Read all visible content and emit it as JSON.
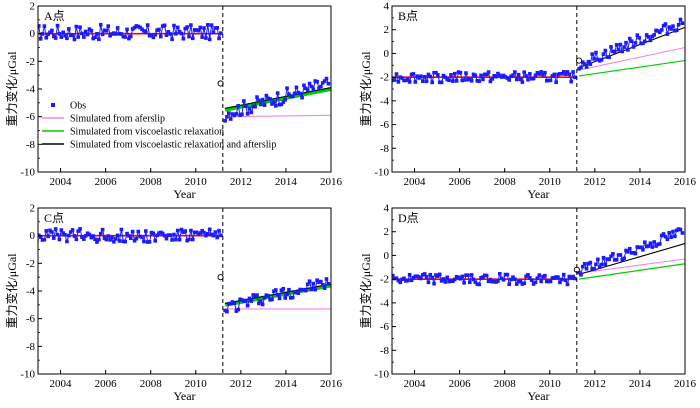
{
  "chart_data": [
    {
      "type": "line",
      "panel": "A",
      "title": "A点",
      "xlabel": "Year",
      "ylabel": "重力变化/μGal",
      "xlim": [
        2003,
        2016
      ],
      "ylim": [
        -10,
        2
      ],
      "xticks": [
        2004,
        2006,
        2008,
        2010,
        2012,
        2014,
        2016
      ],
      "yticks": [
        -10,
        -8,
        -6,
        -4,
        -2,
        0,
        2
      ],
      "event_x": 2011.2,
      "obs_pre_mean": 0.1,
      "obs_pre_amp": 0.55,
      "obs_post_start": -5.8,
      "obs_post_end": -3.6,
      "obs_post_amp": 0.55,
      "obs_x_end": 2015.9,
      "gap_point": [
        2011.1,
        -3.6
      ],
      "pre_fit": [
        [
          2003,
          0
        ],
        [
          2011.1,
          0
        ]
      ],
      "series": [
        {
          "name": "Obs",
          "color": "#1a1aff"
        },
        {
          "name": "Simulated from aferslip",
          "color": "#ee88ee",
          "values": [
            [
              2011.3,
              -6.0
            ],
            [
              2016,
              -5.9
            ]
          ]
        },
        {
          "name": "Simulated from viscoelastic relaxation",
          "color": "#00cc00",
          "values": [
            [
              2011.3,
              -5.5
            ],
            [
              2016,
              -4.0
            ]
          ]
        },
        {
          "name": "Simulated from viscoelastic relaxation and afterslip",
          "color": "#000000",
          "values": [
            [
              2011.3,
              -5.4
            ],
            [
              2016,
              -3.9
            ]
          ]
        }
      ],
      "legend": true
    },
    {
      "type": "line",
      "panel": "B",
      "title": "B点",
      "xlabel": "Year",
      "ylabel": "重力变化/μGal",
      "xlim": [
        2003,
        2016
      ],
      "ylim": [
        -10,
        4
      ],
      "xticks": [
        2004,
        2006,
        2008,
        2010,
        2012,
        2014,
        2016
      ],
      "yticks": [
        -10,
        -8,
        -6,
        -4,
        -2,
        0,
        2,
        4
      ],
      "event_x": 2011.2,
      "obs_pre_mean": -2.0,
      "obs_pre_amp": 0.45,
      "obs_post_start": -1.0,
      "obs_post_end": 2.6,
      "obs_post_amp": 0.5,
      "obs_x_end": 2015.9,
      "gap_point": [
        2011.3,
        -0.6
      ],
      "pre_fit": [
        [
          2003,
          -2.0
        ],
        [
          2011.1,
          -2.0
        ]
      ],
      "series": [
        {
          "name": "Obs",
          "color": "#1a1aff"
        },
        {
          "name": "Simulated from aferslip",
          "color": "#ee88ee",
          "values": [
            [
              2011.3,
              -1.4
            ],
            [
              2016,
              0.5
            ]
          ]
        },
        {
          "name": "Simulated from viscoelastic relaxation",
          "color": "#00cc00",
          "values": [
            [
              2011.3,
              -1.9
            ],
            [
              2016,
              -0.6
            ]
          ]
        },
        {
          "name": "Simulated from viscoelastic relaxation and afterslip",
          "color": "#000000",
          "values": [
            [
              2011.3,
              -1.2
            ],
            [
              2016,
              2.2
            ]
          ]
        }
      ],
      "legend": false
    },
    {
      "type": "line",
      "panel": "C",
      "title": "C点",
      "xlabel": "Year",
      "ylabel": "重力变化/μGal",
      "xlim": [
        2003,
        2016
      ],
      "ylim": [
        -10,
        2
      ],
      "xticks": [
        2004,
        2006,
        2008,
        2010,
        2012,
        2014,
        2016
      ],
      "yticks": [
        -10,
        -8,
        -6,
        -4,
        -2,
        0,
        2
      ],
      "event_x": 2011.2,
      "obs_pre_mean": 0.0,
      "obs_pre_amp": 0.5,
      "obs_post_start": -5.2,
      "obs_post_end": -3.4,
      "obs_post_amp": 0.5,
      "obs_x_end": 2015.9,
      "gap_point": [
        2011.1,
        -3.0
      ],
      "pre_fit": [
        [
          2003,
          0
        ],
        [
          2011.1,
          0
        ]
      ],
      "series": [
        {
          "name": "Obs",
          "color": "#1a1aff"
        },
        {
          "name": "Simulated from aferslip",
          "color": "#ee88ee",
          "values": [
            [
              2011.3,
              -5.3
            ],
            [
              2016,
              -5.3
            ]
          ]
        },
        {
          "name": "Simulated from viscoelastic relaxation",
          "color": "#00cc00",
          "values": [
            [
              2011.3,
              -5.0
            ],
            [
              2016,
              -3.6
            ]
          ]
        },
        {
          "name": "Simulated from viscoelastic relaxation and afterslip",
          "color": "#000000",
          "values": [
            [
              2011.3,
              -4.9
            ],
            [
              2016,
              -3.5
            ]
          ]
        }
      ],
      "legend": false
    },
    {
      "type": "line",
      "panel": "D",
      "title": "D点",
      "xlabel": "Year",
      "ylabel": "重力变化/μGal",
      "xlim": [
        2003,
        2016
      ],
      "ylim": [
        -10,
        4
      ],
      "xticks": [
        2004,
        2006,
        2008,
        2010,
        2012,
        2014,
        2016
      ],
      "yticks": [
        -10,
        -8,
        -6,
        -4,
        -2,
        0,
        2,
        4
      ],
      "event_x": 2011.2,
      "obs_pre_mean": -2.0,
      "obs_pre_amp": 0.45,
      "obs_post_start": -1.4,
      "obs_post_end": 2.0,
      "obs_post_amp": 0.45,
      "obs_x_end": 2015.9,
      "gap_point": [
        2011.2,
        -1.2
      ],
      "pre_fit": [
        [
          2003,
          -2.0
        ],
        [
          2011.1,
          -2.0
        ]
      ],
      "series": [
        {
          "name": "Obs",
          "color": "#1a1aff"
        },
        {
          "name": "Simulated from aferslip",
          "color": "#ee88ee",
          "values": [
            [
              2011.3,
              -1.5
            ],
            [
              2016,
              -0.3
            ]
          ]
        },
        {
          "name": "Simulated from viscoelastic relaxation",
          "color": "#00cc00",
          "values": [
            [
              2011.3,
              -2.0
            ],
            [
              2016,
              -0.7
            ]
          ]
        },
        {
          "name": "Simulated from viscoelastic relaxation and afterslip",
          "color": "#000000",
          "values": [
            [
              2011.3,
              -1.6
            ],
            [
              2016,
              1.0
            ]
          ]
        }
      ],
      "legend": false
    }
  ],
  "colors": {
    "pre_fit": "#ff0000",
    "obs": "#1a1aff",
    "axis": "#000000"
  }
}
